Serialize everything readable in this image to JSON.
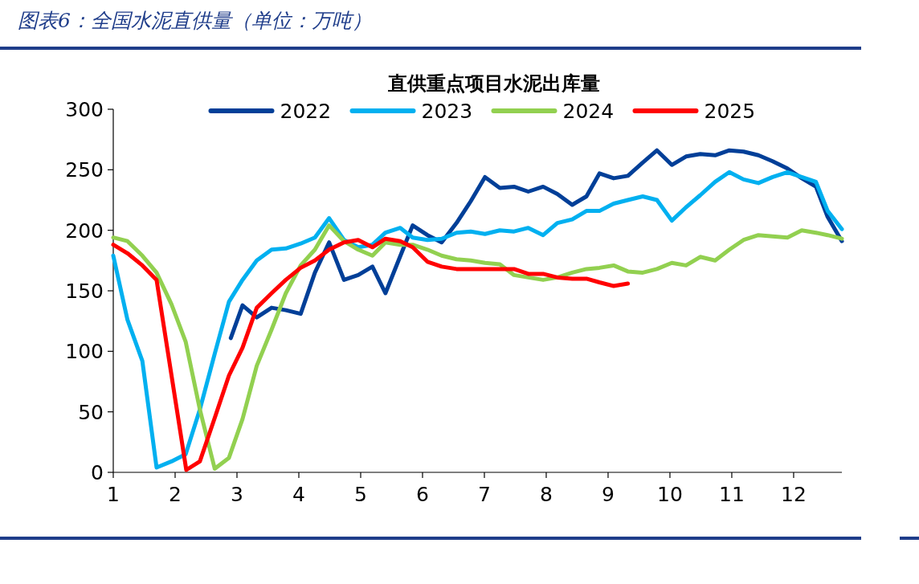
{
  "chart_data": {
    "type": "line",
    "title": "图表6：全国水泥直供量（单位：万吨）",
    "subtitle": "直供重点项目水泥出库量",
    "xlim": [
      1,
      12.78
    ],
    "xticks": [
      1,
      2,
      3,
      4,
      5,
      6,
      7,
      8,
      9,
      10,
      11,
      12
    ],
    "ylim": [
      0,
      300
    ],
    "yticks": [
      0,
      50,
      100,
      150,
      200,
      250,
      300
    ],
    "legend": "top",
    "series": [
      {
        "name": "2022",
        "color": "#003f98",
        "x": [
          2.9,
          3.09,
          3.32,
          3.56,
          3.79,
          4.03,
          4.26,
          4.49,
          4.73,
          4.96,
          5.19,
          5.4,
          5.62,
          5.84,
          6.08,
          6.31,
          6.55,
          6.78,
          7.01,
          7.25,
          7.48,
          7.71,
          7.95,
          8.18,
          8.42,
          8.65,
          8.86,
          9.09,
          9.32,
          9.56,
          9.79,
          10.03,
          10.26,
          10.49,
          10.73,
          10.96,
          11.19,
          11.43,
          11.66,
          11.9,
          12.13,
          12.36,
          12.55,
          12.78
        ],
        "values": [
          111,
          138,
          128,
          136,
          134,
          131,
          165,
          190,
          159,
          163,
          170,
          148,
          176,
          204,
          196,
          190,
          206,
          224,
          244,
          235,
          236,
          232,
          236,
          230,
          221,
          228,
          247,
          243,
          245,
          256,
          266,
          254,
          261,
          263,
          262,
          266,
          265,
          262,
          257,
          251,
          243,
          236,
          211,
          191
        ]
      },
      {
        "name": "2023",
        "color": "#00b0f0",
        "x": [
          1,
          1.23,
          1.47,
          1.7,
          1.94,
          2.17,
          2.4,
          2.64,
          2.87,
          3.09,
          3.32,
          3.56,
          3.79,
          4.03,
          4.26,
          4.49,
          4.73,
          4.96,
          5.19,
          5.4,
          5.64,
          5.84,
          6.08,
          6.31,
          6.55,
          6.78,
          7.01,
          7.25,
          7.48,
          7.71,
          7.95,
          8.18,
          8.42,
          8.65,
          8.86,
          9.09,
          9.32,
          9.56,
          9.79,
          10.03,
          10.26,
          10.49,
          10.73,
          10.96,
          11.19,
          11.43,
          11.66,
          11.9,
          12.13,
          12.36,
          12.55,
          12.78
        ],
        "values": [
          179,
          126,
          92,
          4,
          9,
          15,
          52,
          98,
          141,
          159,
          175,
          184,
          185,
          189,
          194,
          210,
          192,
          186,
          188,
          198,
          202,
          194,
          192,
          193,
          198,
          199,
          197,
          200,
          199,
          202,
          196,
          206,
          209,
          216,
          216,
          222,
          225,
          228,
          225,
          208,
          219,
          229,
          240,
          248,
          242,
          239,
          244,
          248,
          244,
          240,
          216,
          201
        ]
      },
      {
        "name": "2024",
        "color": "#92d050",
        "x": [
          1,
          1.23,
          1.47,
          1.7,
          1.94,
          2.17,
          2.4,
          2.64,
          2.87,
          3.09,
          3.32,
          3.56,
          3.79,
          4.03,
          4.26,
          4.49,
          4.73,
          4.96,
          5.19,
          5.4,
          5.64,
          5.84,
          6.08,
          6.31,
          6.55,
          6.78,
          7.01,
          7.25,
          7.48,
          7.71,
          7.95,
          8.18,
          8.42,
          8.65,
          8.86,
          9.09,
          9.32,
          9.56,
          9.79,
          10.03,
          10.26,
          10.49,
          10.73,
          10.96,
          11.19,
          11.43,
          11.66,
          11.9,
          12.13,
          12.36,
          12.55,
          12.78
        ],
        "values": [
          194,
          191,
          179,
          165,
          139,
          108,
          52,
          3,
          12,
          44,
          88,
          118,
          148,
          171,
          184,
          204,
          191,
          184,
          179,
          190,
          188,
          188,
          184,
          179,
          176,
          175,
          173,
          172,
          163,
          161,
          159,
          161,
          165,
          168,
          169,
          171,
          166,
          165,
          168,
          173,
          171,
          178,
          175,
          184,
          192,
          196,
          195,
          194,
          200,
          198,
          196,
          193
        ]
      },
      {
        "name": "2025",
        "color": "#ff0000",
        "x": [
          1,
          1.23,
          1.47,
          1.7,
          2.18,
          2.4,
          2.64,
          2.87,
          3.09,
          3.32,
          3.56,
          3.79,
          4.03,
          4.26,
          4.49,
          4.73,
          4.96,
          5.19,
          5.4,
          5.64,
          5.84,
          6.08,
          6.31,
          6.55,
          6.78,
          7.01,
          7.25,
          7.48,
          7.71,
          7.95,
          8.18,
          8.42,
          8.65,
          8.86,
          9.09,
          9.32
        ],
        "values": [
          188,
          181,
          171,
          159,
          2,
          9,
          45,
          80,
          103,
          136,
          148,
          159,
          169,
          175,
          184,
          190,
          192,
          186,
          193,
          191,
          186,
          174,
          170,
          168,
          168,
          168,
          168,
          168,
          164,
          164,
          161,
          160,
          160,
          157,
          154,
          156
        ]
      }
    ]
  }
}
